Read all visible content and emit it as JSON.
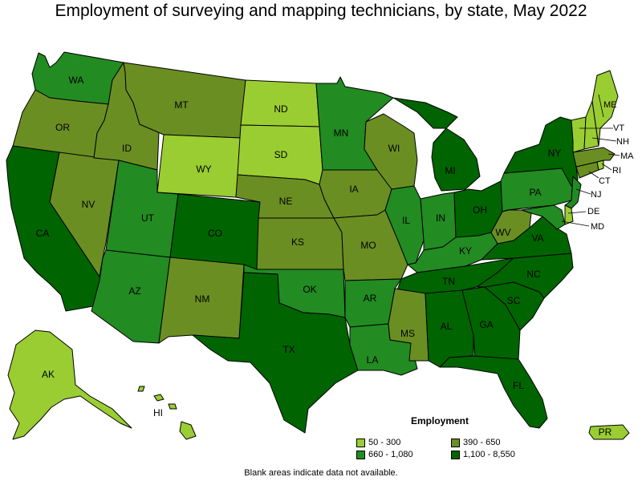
{
  "title": "Employment of surveying and mapping technicians, by state, May 2022",
  "legend": {
    "title": "Employment",
    "bins": [
      {
        "label": "50 - 300",
        "color": "#9acd32"
      },
      {
        "label": "390 - 650",
        "color": "#6b8e23"
      },
      {
        "label": "660 - 1,080",
        "color": "#228b22"
      },
      {
        "label": "1,100 - 8,550",
        "color": "#006400"
      }
    ]
  },
  "note": "Blank areas indicate data not available.",
  "states": [
    {
      "abbr": "WA",
      "bin": 2
    },
    {
      "abbr": "OR",
      "bin": 1
    },
    {
      "abbr": "CA",
      "bin": 3
    },
    {
      "abbr": "NV",
      "bin": 1
    },
    {
      "abbr": "ID",
      "bin": 1
    },
    {
      "abbr": "MT",
      "bin": 1
    },
    {
      "abbr": "WY",
      "bin": 0
    },
    {
      "abbr": "UT",
      "bin": 2
    },
    {
      "abbr": "AZ",
      "bin": 2
    },
    {
      "abbr": "CO",
      "bin": 3
    },
    {
      "abbr": "NM",
      "bin": 1
    },
    {
      "abbr": "ND",
      "bin": 0
    },
    {
      "abbr": "SD",
      "bin": 0
    },
    {
      "abbr": "NE",
      "bin": 1
    },
    {
      "abbr": "KS",
      "bin": 1
    },
    {
      "abbr": "OK",
      "bin": 2
    },
    {
      "abbr": "TX",
      "bin": 3
    },
    {
      "abbr": "MN",
      "bin": 2
    },
    {
      "abbr": "IA",
      "bin": 1
    },
    {
      "abbr": "MO",
      "bin": 1
    },
    {
      "abbr": "AR",
      "bin": 2
    },
    {
      "abbr": "LA",
      "bin": 2
    },
    {
      "abbr": "WI",
      "bin": 1
    },
    {
      "abbr": "IL",
      "bin": 2
    },
    {
      "abbr": "MI",
      "bin": 3
    },
    {
      "abbr": "IN",
      "bin": 2
    },
    {
      "abbr": "OH",
      "bin": 3
    },
    {
      "abbr": "KY",
      "bin": 2
    },
    {
      "abbr": "TN",
      "bin": 3
    },
    {
      "abbr": "MS",
      "bin": 1
    },
    {
      "abbr": "AL",
      "bin": 3
    },
    {
      "abbr": "GA",
      "bin": 3
    },
    {
      "abbr": "FL",
      "bin": 3
    },
    {
      "abbr": "SC",
      "bin": 3
    },
    {
      "abbr": "NC",
      "bin": 3
    },
    {
      "abbr": "VA",
      "bin": 3
    },
    {
      "abbr": "WV",
      "bin": 1
    },
    {
      "abbr": "PA",
      "bin": 2
    },
    {
      "abbr": "NY",
      "bin": 3
    },
    {
      "abbr": "ME",
      "bin": 0
    },
    {
      "abbr": "VT",
      "bin": 0
    },
    {
      "abbr": "NH",
      "bin": 0
    },
    {
      "abbr": "MA",
      "bin": 1
    },
    {
      "abbr": "RI",
      "bin": 0
    },
    {
      "abbr": "CT",
      "bin": 1
    },
    {
      "abbr": "NJ",
      "bin": 2
    },
    {
      "abbr": "DE",
      "bin": 0
    },
    {
      "abbr": "MD",
      "bin": 2
    },
    {
      "abbr": "AK",
      "bin": 0
    },
    {
      "abbr": "HI",
      "bin": 0
    },
    {
      "abbr": "PR",
      "bin": 0
    }
  ]
}
